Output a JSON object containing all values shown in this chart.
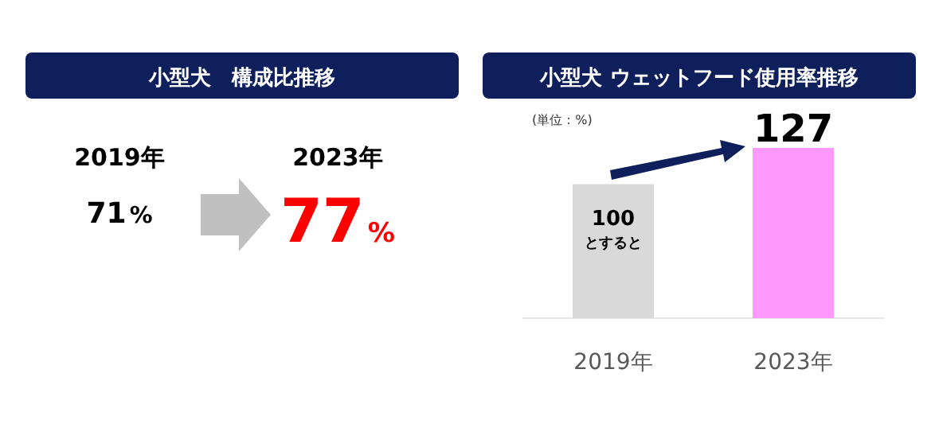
{
  "chart_data": [
    {
      "type": "other",
      "title": "小型犬　構成比推移",
      "categories": [
        "2019年",
        "2023年"
      ],
      "value_labels": [
        "71%",
        "77%"
      ],
      "colors": [
        "#000000",
        "#ff0000"
      ]
    },
    {
      "type": "bar",
      "title": "小型犬 ウェットフード使用率推移",
      "subtitle": "(単位：%)",
      "categories": [
        "2019年",
        "2023年"
      ],
      "values": [
        100,
        127
      ],
      "colors": [
        "#d9d9d9",
        "#ff99ff"
      ],
      "data_labels": true,
      "annotations": [
        "とすると"
      ]
    }
  ]
}
